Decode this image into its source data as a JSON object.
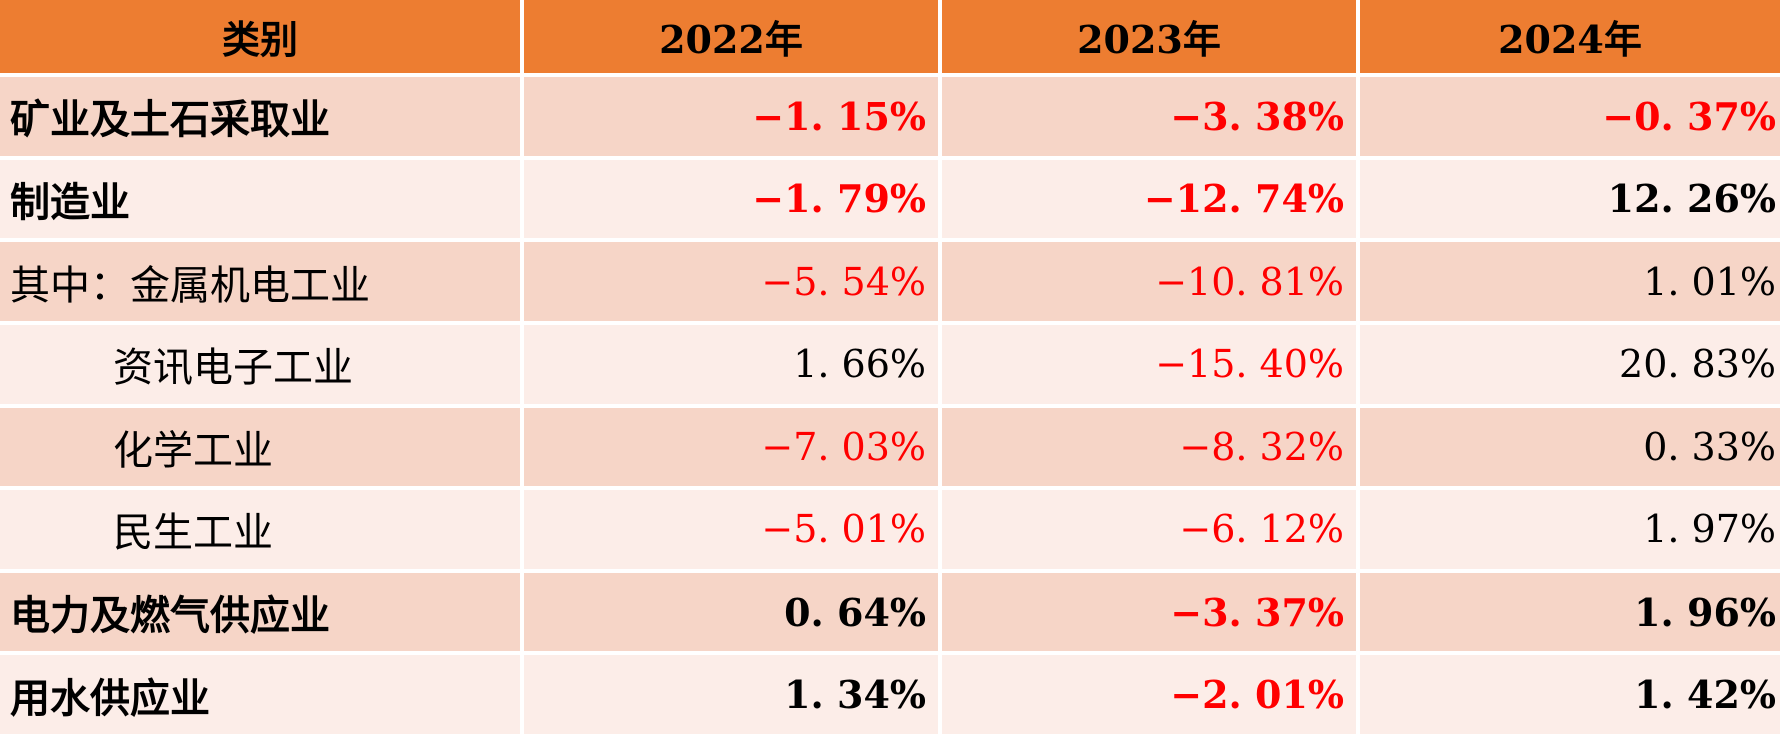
{
  "table": {
    "columns": [
      "类别",
      "2022年",
      "2023年",
      "2024年"
    ],
    "rows": [
      {
        "label": "矿业及土石采取业",
        "emphasis": true,
        "indent": 0,
        "values": [
          "−1. 15%",
          "−3. 38%",
          "−0. 37%"
        ]
      },
      {
        "label": "制造业",
        "emphasis": true,
        "indent": 0,
        "values": [
          "−1. 79%",
          "−12. 74%",
          "12. 26%"
        ]
      },
      {
        "label": "其中：金属机电工业",
        "emphasis": false,
        "indent": 0,
        "values": [
          "−5. 54%",
          "−10. 81%",
          "1. 01%"
        ]
      },
      {
        "label": "资讯电子工业",
        "emphasis": false,
        "indent": 1,
        "values": [
          "1. 66%",
          "−15. 40%",
          "20. 83%"
        ]
      },
      {
        "label": "化学工业",
        "emphasis": false,
        "indent": 1,
        "values": [
          "−7. 03%",
          "−8. 32%",
          "0. 33%"
        ]
      },
      {
        "label": "民生工业",
        "emphasis": false,
        "indent": 1,
        "values": [
          "−5. 01%",
          "−6. 12%",
          "1. 97%"
        ]
      },
      {
        "label": "电力及燃气供应业",
        "emphasis": true,
        "indent": 0,
        "values": [
          "0. 64%",
          "−3. 37%",
          "1. 96%"
        ]
      },
      {
        "label": "用水供应业",
        "emphasis": true,
        "indent": 0,
        "values": [
          "1. 34%",
          "−2. 01%",
          "1. 42%"
        ]
      }
    ],
    "colors": {
      "header_bg": "#ED7D31",
      "header_text": "#000000",
      "band_dark": "#F6D5C7",
      "band_light": "#FCEDE8",
      "negative": "#FF0000",
      "positive": "#000000"
    }
  },
  "chart_data": {
    "type": "table",
    "categories": [
      "矿业及土石采取业",
      "制造业",
      "其中：金属机电工业",
      "资讯电子工业",
      "化学工业",
      "民生工业",
      "电力及燃气供应业",
      "用水供应业"
    ],
    "series": [
      {
        "name": "2022年",
        "values": [
          -1.15,
          -1.79,
          -5.54,
          1.66,
          -7.03,
          -5.01,
          0.64,
          1.34
        ]
      },
      {
        "name": "2023年",
        "values": [
          -3.38,
          -12.74,
          -10.81,
          -15.4,
          -8.32,
          -6.12,
          -3.37,
          -2.01
        ]
      },
      {
        "name": "2024年",
        "values": [
          -0.37,
          12.26,
          1.01,
          20.83,
          0.33,
          1.97,
          1.96,
          1.42
        ]
      }
    ],
    "unit": "%",
    "value_color_rule": "negative values red, non-negative black",
    "layout_hints": {
      "banded_rows": true,
      "header_fill": "#ED7D31",
      "grid": "white gaps between cells"
    }
  }
}
